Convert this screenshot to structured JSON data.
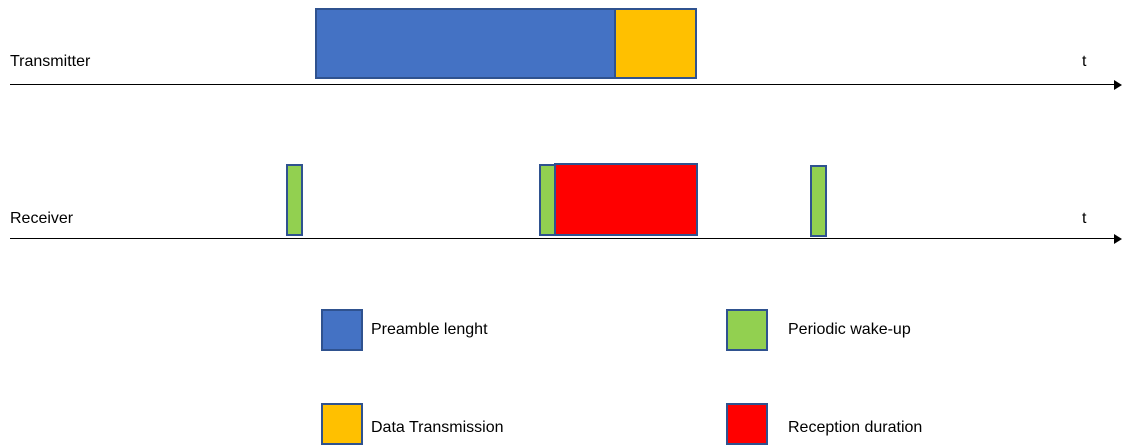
{
  "colors": {
    "preamble": "#4472c4",
    "data": "#ffc000",
    "wakeup": "#92d050",
    "reception": "#ff0000",
    "outline": "#2f528f",
    "axis": "#000000"
  },
  "transmitter": {
    "label": "Transmitter",
    "axis_label": "t"
  },
  "receiver": {
    "label": "Receiver",
    "axis_label": "t"
  },
  "legend": {
    "preamble": "Preamble lenght",
    "wakeup": "Periodic wake-up",
    "data": "Data Transmission",
    "reception": "Reception duration"
  }
}
